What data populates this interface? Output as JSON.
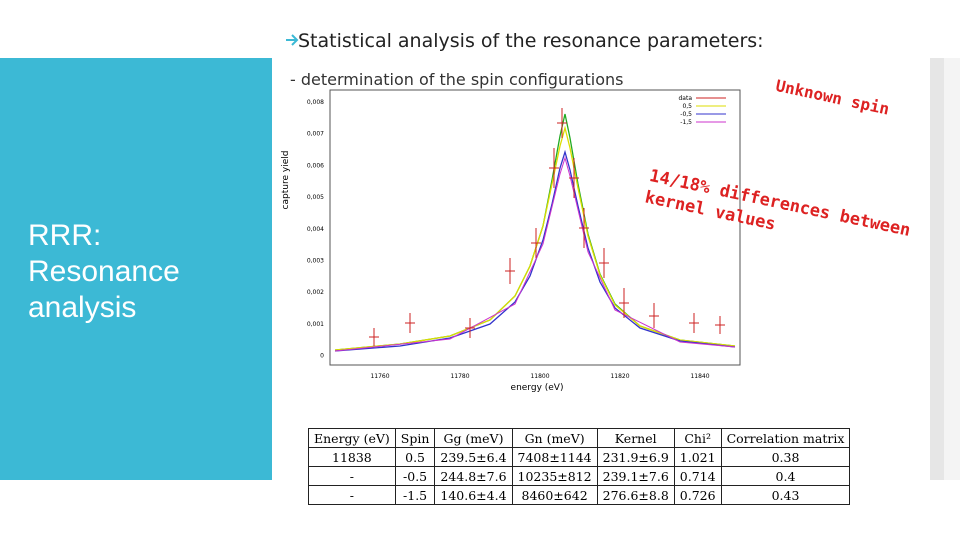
{
  "header": {
    "title": "Statistical analysis of the resonance parameters:",
    "subtitle": "- determination of the spin configurations"
  },
  "sidebar": {
    "title": "RRR: Resonance analysis"
  },
  "plot": {
    "y_label": "capture yield",
    "x_label": "energy (eV)",
    "yticks": [
      "0,008",
      "0,007",
      "0,006",
      "0,005",
      "0,004",
      "0,003",
      "0,002",
      "0,001",
      "0"
    ],
    "xticks": [
      "11760",
      "11780",
      "11800",
      "11820",
      "11840"
    ],
    "legend": [
      "data",
      "0,5",
      "-0,5",
      "-1,5"
    ]
  },
  "annotations": {
    "spin": "Unknown spin",
    "kernel": "14/18% differences between kernel values"
  },
  "table": {
    "header": [
      "Energy (eV)",
      "Spin",
      "Gg (meV)",
      "Gn (meV)",
      "Kernel",
      "Chi²",
      "Correlation matrix"
    ],
    "rows": [
      [
        "11838",
        "0.5",
        "239.5±6.4",
        "7408±1144",
        "231.9±6.9",
        "1.021",
        "0.38"
      ],
      [
        "-",
        "-0.5",
        "244.8±7.6",
        "10235±812",
        "239.1±7.6",
        "0.714",
        "0.4"
      ],
      [
        "-",
        "-1.5",
        "140.6±4.4",
        "8460±642",
        "276.6±8.8",
        "0.726",
        "0.43"
      ]
    ]
  }
}
